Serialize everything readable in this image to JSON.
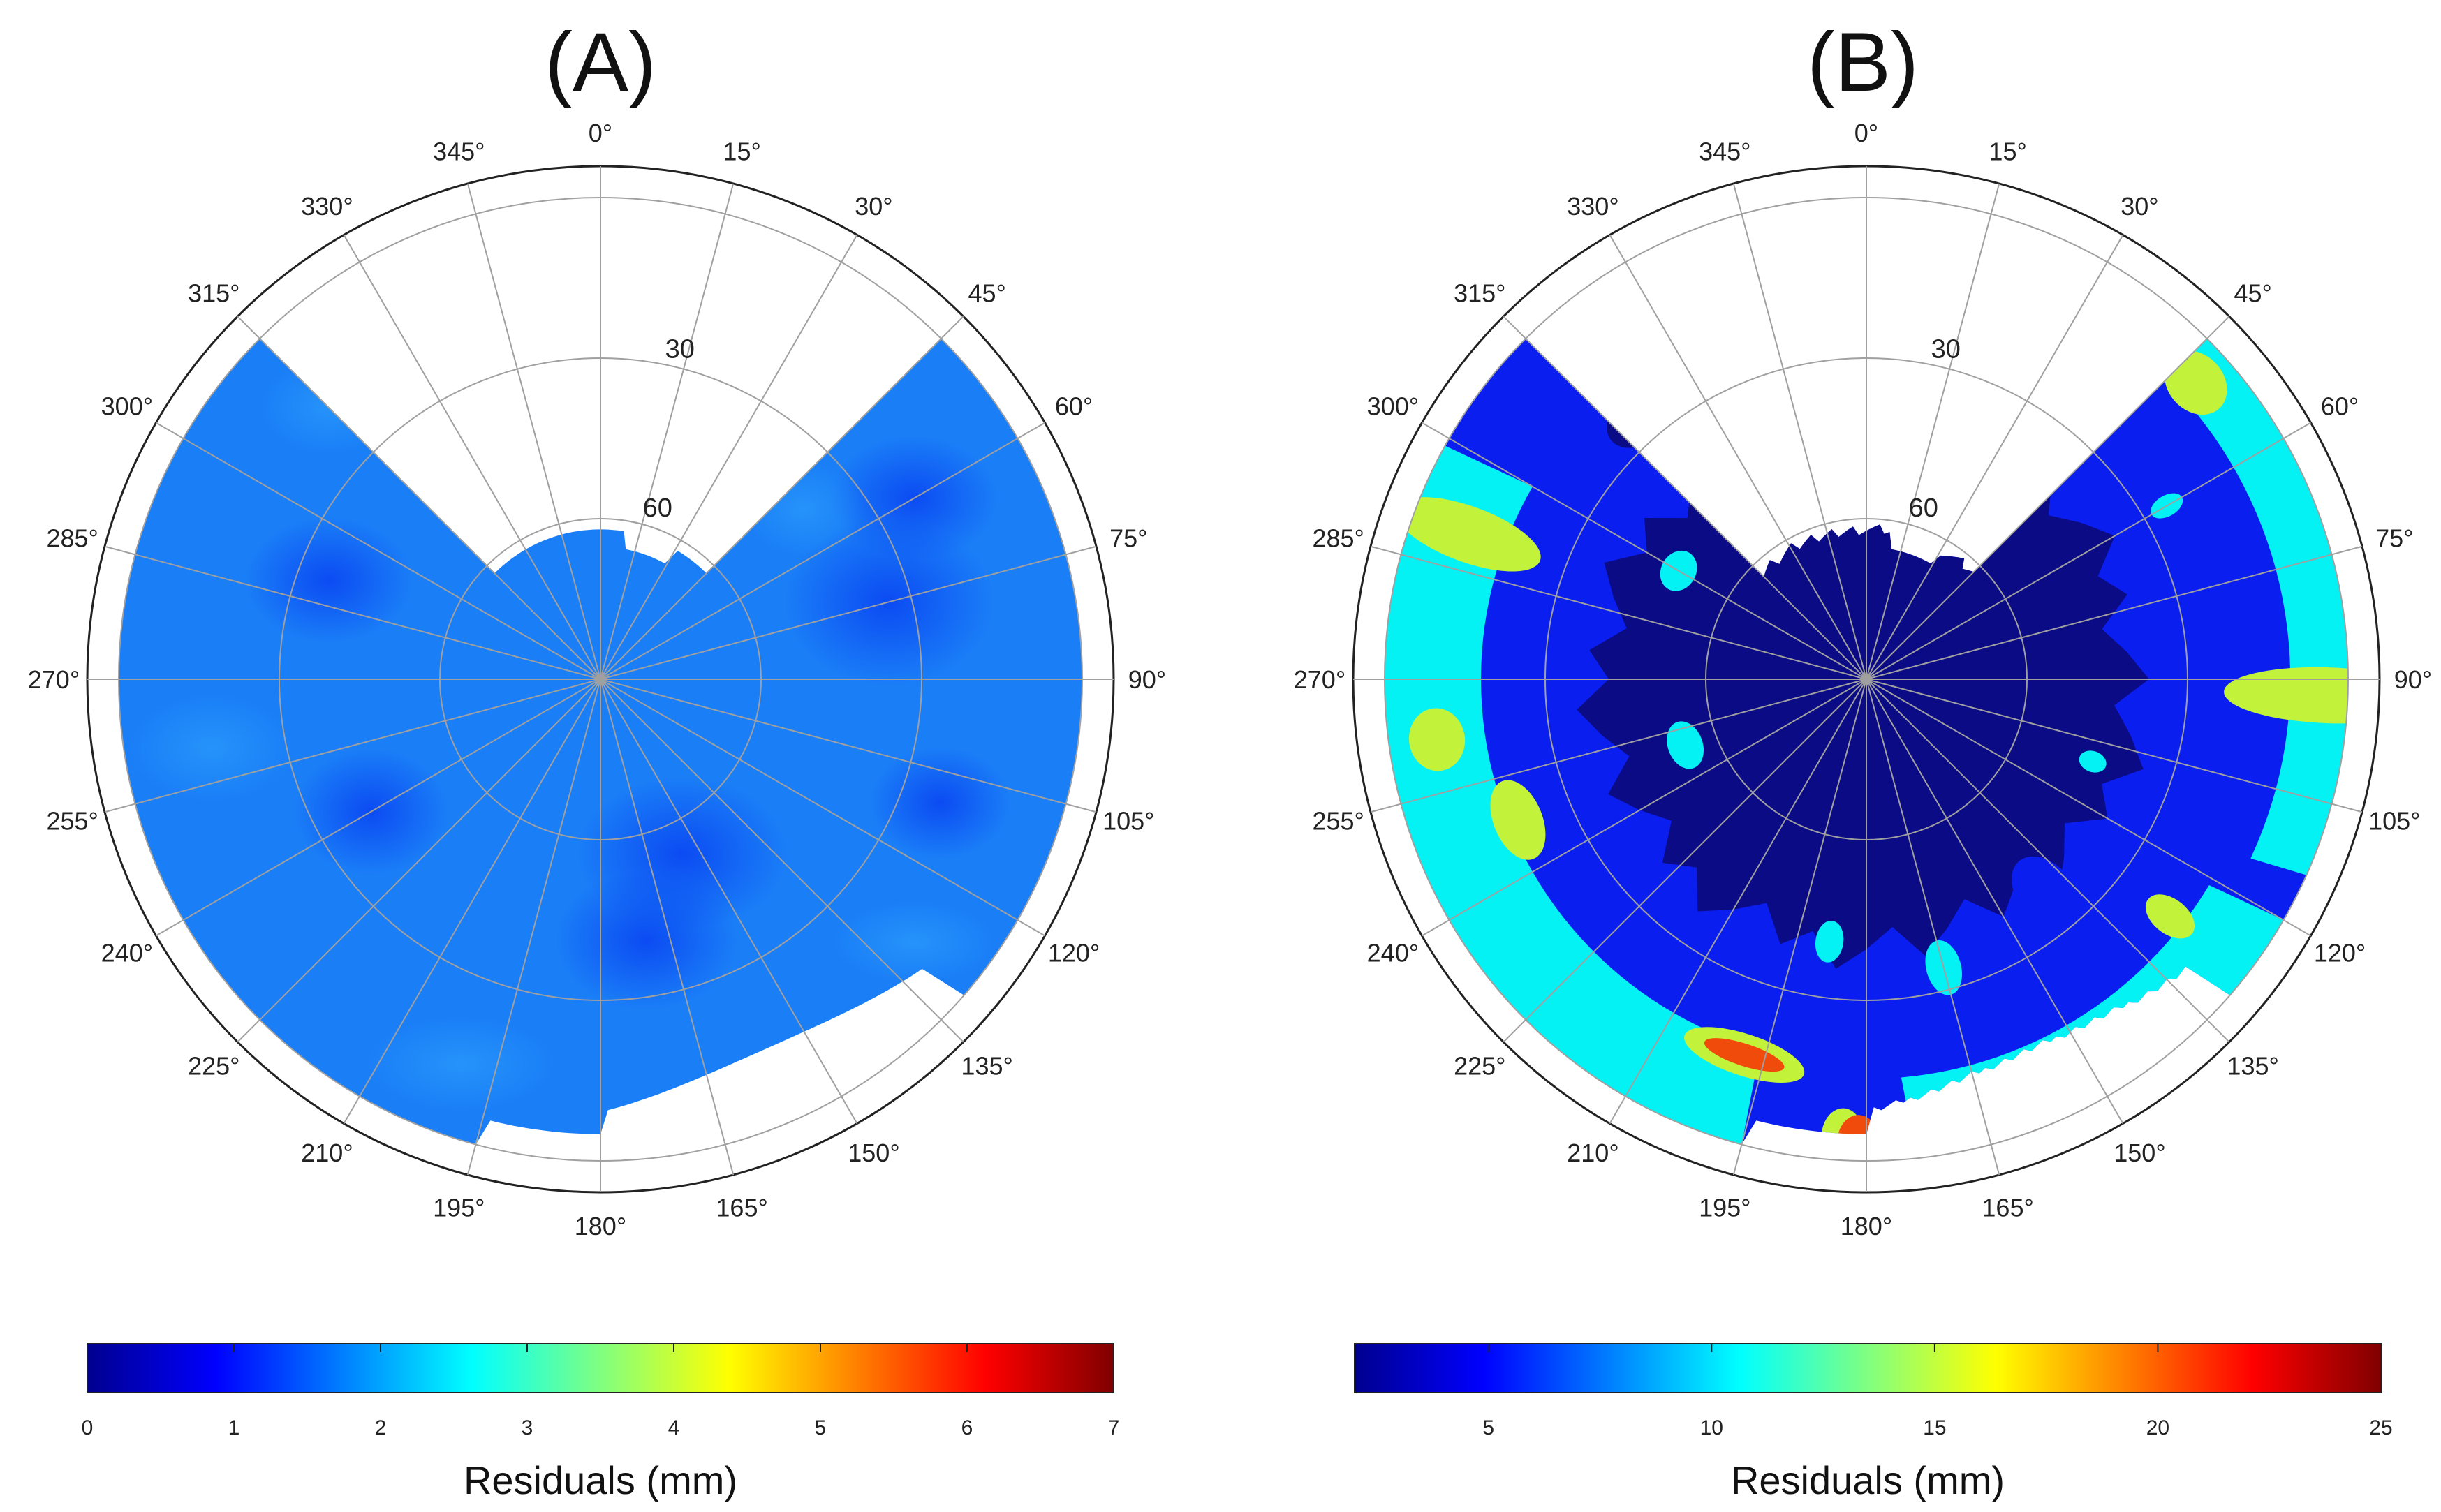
{
  "chart_data": [
    {
      "type": "polar-contour",
      "title": "(A)",
      "azimuth_ticks": [
        "0°",
        "15°",
        "30°",
        "45°",
        "60°",
        "75°",
        "90°",
        "105°",
        "120°",
        "135°",
        "150°",
        "165°",
        "180°",
        "195°",
        "210°",
        "225°",
        "240°",
        "255°",
        "270°",
        "285°",
        "300°",
        "315°",
        "330°",
        "345°"
      ],
      "elevation_rings": [
        90,
        60,
        30,
        0
      ],
      "elevation_labels": [
        "60",
        "30"
      ],
      "colorbar": {
        "label": "Residuals (mm)",
        "range": [
          0,
          7
        ],
        "ticks": [
          "0",
          "1",
          "2",
          "3",
          "4",
          "5",
          "6",
          "7"
        ],
        "colors": [
          "#00008f",
          "#0000ff",
          "#0080ff",
          "#00ffff",
          "#80ff80",
          "#ffff00",
          "#ff8000",
          "#ff0000",
          "#800000"
        ]
      },
      "coverage": {
        "azimuth_range_deg": [
          45,
          315
        ],
        "elevation_cutoff_deg": 0,
        "north_cap_elevation_deg": 62,
        "south_gap_deg": [
          180,
          195
        ],
        "south_gap_elevation_deg": 5
      },
      "dominant_value_mm": 1.7,
      "min_value_mm": 1.0
    },
    {
      "type": "polar-contour",
      "title": "(B)",
      "azimuth_ticks": [
        "0°",
        "15°",
        "30°",
        "45°",
        "60°",
        "75°",
        "90°",
        "105°",
        "120°",
        "135°",
        "150°",
        "165°",
        "180°",
        "195°",
        "210°",
        "225°",
        "240°",
        "255°",
        "270°",
        "285°",
        "300°",
        "315°",
        "330°",
        "345°"
      ],
      "elevation_rings": [
        90,
        60,
        30,
        0
      ],
      "elevation_labels": [
        "60",
        "30"
      ],
      "colorbar": {
        "label": "Residuals (mm)",
        "range": [
          2,
          25
        ],
        "ticks": [
          "5",
          "10",
          "15",
          "20",
          "25"
        ],
        "colors": [
          "#00008f",
          "#0000ff",
          "#0080ff",
          "#00ffff",
          "#80ff80",
          "#ffff00",
          "#ff8000",
          "#ff0000",
          "#800000"
        ]
      },
      "coverage": {
        "azimuth_range_deg": [
          45,
          315
        ],
        "elevation_cutoff_deg": 0,
        "north_cap_elevation_deg": 62,
        "south_gap_deg": [
          180,
          195
        ],
        "south_gap_elevation_deg": 5
      },
      "levels_mm": [
        3,
        6,
        11,
        15,
        19
      ],
      "band_colors": [
        "#0b0b86",
        "#0a1ef0",
        "#05f2f5",
        "#c2f23a",
        "#f04b0a"
      ]
    }
  ]
}
